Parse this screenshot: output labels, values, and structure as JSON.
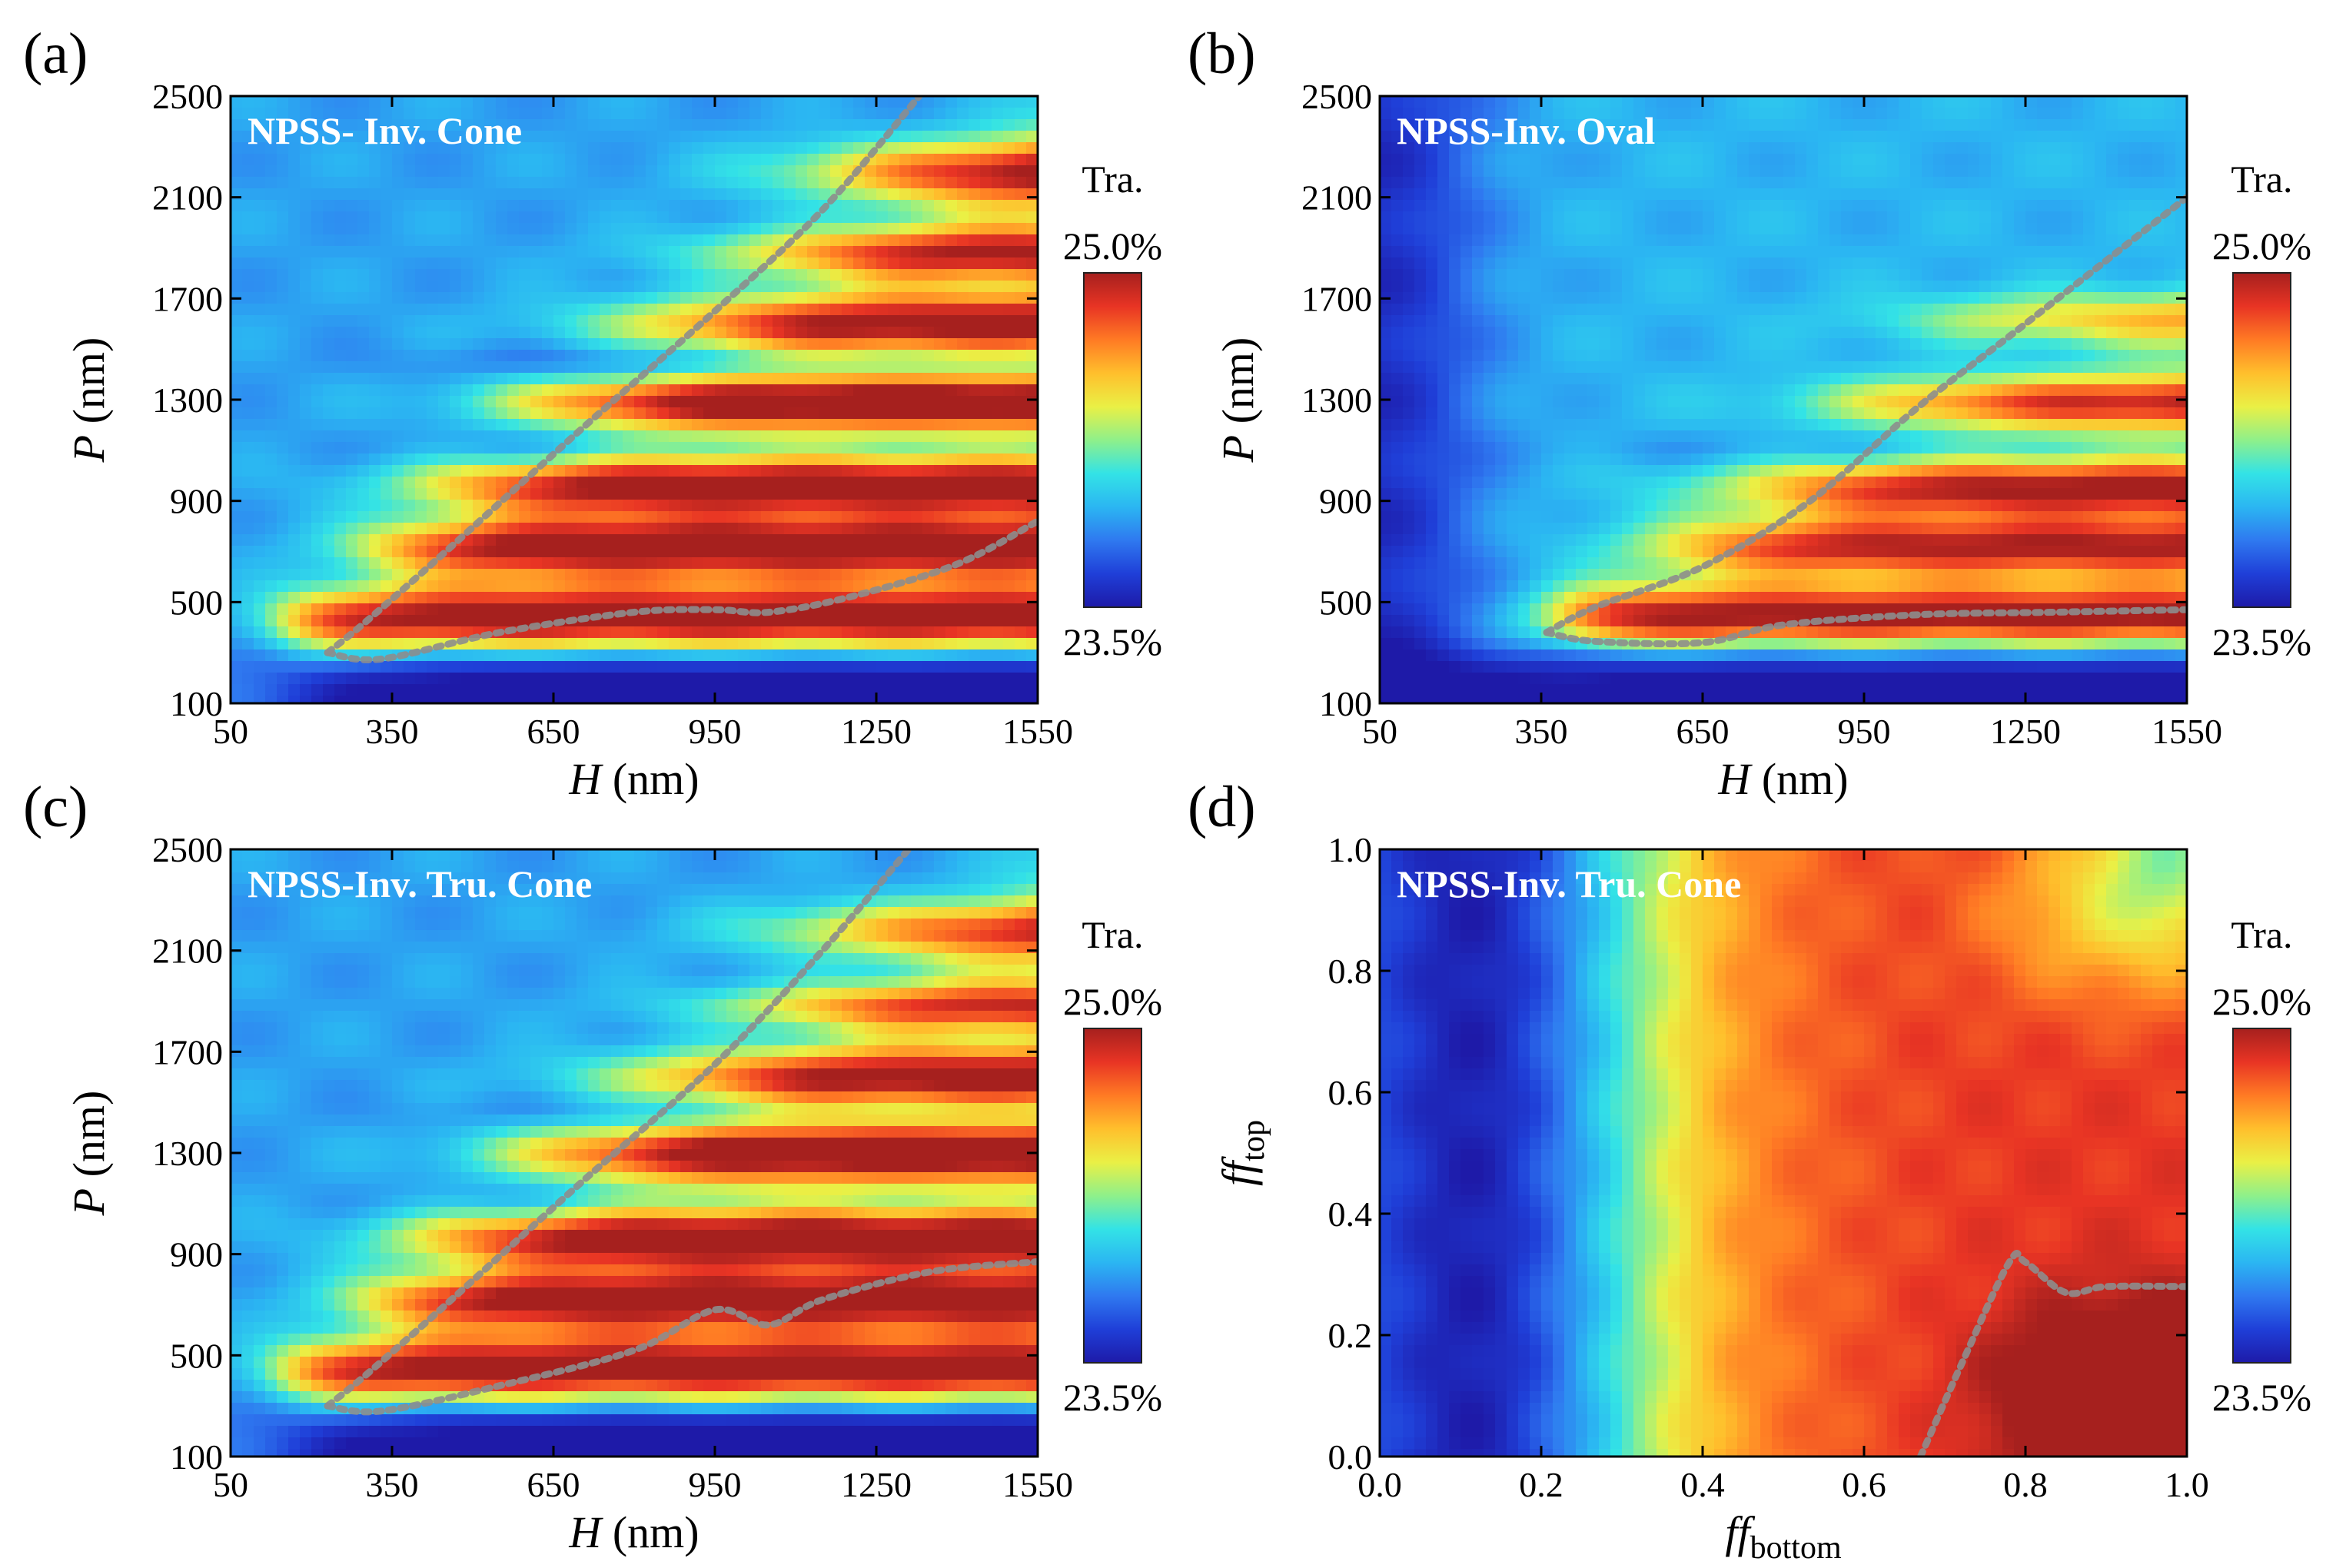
{
  "colors": {
    "colormap": [
      "#1e1aa8",
      "#1f3fd8",
      "#2f79f0",
      "#2bb6f2",
      "#33e3e6",
      "#8ff08a",
      "#eaf045",
      "#ffbf2c",
      "#ff7a24",
      "#e83424",
      "#a6201e"
    ],
    "boundary_line": "#8d8d8d",
    "inset_text": "#ffffff"
  },
  "chart_data": [
    {
      "id": "a",
      "type": "heatmap",
      "panel_label": "(a)",
      "inset_title": "NPSS- Inv. Cone",
      "xlabel": "H",
      "xunit": " (nm)",
      "ylabel": "P",
      "yunit": " (nm)",
      "xlim": [
        50,
        1550
      ],
      "ylim": [
        100,
        2500
      ],
      "xticks": [
        "50",
        "350",
        "650",
        "950",
        "1250",
        "1550"
      ],
      "yticks": [
        "100",
        "500",
        "900",
        "1300",
        "1700",
        "2100",
        "2500"
      ],
      "colorbar": {
        "title": "Tra.",
        "max_label": "25.0%",
        "min_label": "23.5%",
        "range": [
          23.5,
          25.0
        ]
      },
      "field": {
        "base": 23.9,
        "rows": [
          {
            "p": 430,
            "w": 130,
            "amp": 1.0,
            "h_start": 150,
            "h_ramp": 120
          },
          {
            "p": 720,
            "w": 110,
            "amp": 0.9,
            "h_start": 310,
            "h_ramp": 180
          },
          {
            "p": 960,
            "w": 110,
            "amp": 0.9,
            "h_start": 420,
            "h_ramp": 240
          },
          {
            "p": 1290,
            "w": 100,
            "amp": 0.95,
            "h_start": 600,
            "h_ramp": 260
          },
          {
            "p": 1600,
            "w": 110,
            "amp": 0.85,
            "h_start": 800,
            "h_ramp": 300
          },
          {
            "p": 1880,
            "w": 100,
            "amp": 0.8,
            "h_start": 1000,
            "h_ramp": 300
          },
          {
            "p": 2200,
            "w": 120,
            "amp": 0.9,
            "h_start": 1150,
            "h_ramp": 300
          }
        ],
        "cool_valleys": [
          {
            "p": 1100,
            "w": 70,
            "amp": 0.15
          },
          {
            "p": 1450,
            "w": 70,
            "amp": 0.15
          }
        ],
        "bottom_dip": {
          "p_max": 300,
          "amp": 0.6
        },
        "wedge": {
          "h0": 230,
          "p0": 300,
          "slope": 1.6,
          "amp": 0.35
        }
      },
      "boundary_curves": [
        {
          "name": "upper-boundary",
          "points": [
            [
              230,
              300
            ],
            [
              300,
              420
            ],
            [
              450,
              700
            ],
            [
              700,
              1180
            ],
            [
              950,
              1650
            ],
            [
              1150,
              2050
            ],
            [
              1330,
              2500
            ]
          ]
        },
        {
          "name": "lower-boundary",
          "points": [
            [
              230,
              300
            ],
            [
              330,
              275
            ],
            [
              550,
              380
            ],
            [
              800,
              460
            ],
            [
              950,
              470
            ],
            [
              1050,
              460
            ],
            [
              1200,
              520
            ],
            [
              1400,
              650
            ],
            [
              1550,
              820
            ]
          ]
        }
      ]
    },
    {
      "id": "b",
      "type": "heatmap",
      "panel_label": "(b)",
      "inset_title": "NPSS-Inv. Oval",
      "xlabel": "H",
      "xunit": " (nm)",
      "ylabel": "P",
      "yunit": " (nm)",
      "xlim": [
        50,
        1550
      ],
      "ylim": [
        100,
        2500
      ],
      "xticks": [
        "50",
        "350",
        "650",
        "950",
        "1250",
        "1550"
      ],
      "yticks": [
        "100",
        "500",
        "900",
        "1300",
        "1700",
        "2100",
        "2500"
      ],
      "colorbar": {
        "title": "Tra.",
        "max_label": "25.0%",
        "min_label": "23.5%",
        "range": [
          23.5,
          25.0
        ]
      },
      "field": {
        "base": 23.95,
        "rows": [
          {
            "p": 440,
            "w": 120,
            "amp": 0.95,
            "h_start": 380,
            "h_ramp": 130
          },
          {
            "p": 720,
            "w": 110,
            "amp": 0.8,
            "h_start": 600,
            "h_ramp": 250
          },
          {
            "p": 950,
            "w": 110,
            "amp": 0.85,
            "h_start": 750,
            "h_ramp": 300
          },
          {
            "p": 1290,
            "w": 100,
            "amp": 0.8,
            "h_start": 950,
            "h_ramp": 300
          },
          {
            "p": 1620,
            "w": 100,
            "amp": 0.55,
            "h_start": 1100,
            "h_ramp": 300
          }
        ],
        "cool_valleys": [
          {
            "p": 1100,
            "w": 70,
            "amp": 0.1
          }
        ],
        "bottom_dip": {
          "p_max": 300,
          "amp": 0.6
        },
        "wedge": {
          "h0": 360,
          "p0": 380,
          "slope": 1.0,
          "amp": 0.25
        },
        "left_dip": {
          "h_max": 200,
          "amp": 0.4
        }
      },
      "boundary_curves": [
        {
          "name": "upper-boundary",
          "points": [
            [
              360,
              380
            ],
            [
              450,
              480
            ],
            [
              650,
              640
            ],
            [
              850,
              900
            ],
            [
              1050,
              1270
            ],
            [
              1250,
              1600
            ],
            [
              1550,
              2100
            ]
          ]
        },
        {
          "name": "lower-boundary",
          "points": [
            [
              360,
              380
            ],
            [
              450,
              345
            ],
            [
              650,
              340
            ],
            [
              800,
              410
            ],
            [
              1050,
              450
            ],
            [
              1300,
              460
            ],
            [
              1550,
              470
            ]
          ]
        }
      ]
    },
    {
      "id": "c",
      "type": "heatmap",
      "panel_label": "(c)",
      "inset_title": "NPSS-Inv. Tru. Cone",
      "xlabel": "H",
      "xunit": " (nm)",
      "ylabel": "P",
      "yunit": " (nm)",
      "xlim": [
        50,
        1550
      ],
      "ylim": [
        100,
        2500
      ],
      "xticks": [
        "50",
        "350",
        "650",
        "950",
        "1250",
        "1550"
      ],
      "yticks": [
        "100",
        "500",
        "900",
        "1300",
        "1700",
        "2100",
        "2500"
      ],
      "colorbar": {
        "title": "Tra.",
        "max_label": "25.0%",
        "min_label": "23.5%",
        "range": [
          23.5,
          25.0
        ]
      },
      "field": {
        "base": 23.9,
        "rows": [
          {
            "p": 440,
            "w": 130,
            "amp": 1.0,
            "h_start": 150,
            "h_ramp": 120
          },
          {
            "p": 720,
            "w": 110,
            "amp": 0.9,
            "h_start": 300,
            "h_ramp": 180
          },
          {
            "p": 960,
            "w": 110,
            "amp": 0.95,
            "h_start": 400,
            "h_ramp": 240
          },
          {
            "p": 1300,
            "w": 110,
            "amp": 0.95,
            "h_start": 600,
            "h_ramp": 260
          },
          {
            "p": 1600,
            "w": 110,
            "amp": 0.85,
            "h_start": 800,
            "h_ramp": 300
          },
          {
            "p": 1880,
            "w": 90,
            "amp": 0.7,
            "h_start": 1000,
            "h_ramp": 300
          },
          {
            "p": 2180,
            "w": 110,
            "amp": 0.75,
            "h_start": 1100,
            "h_ramp": 300
          }
        ],
        "cool_valleys": [
          {
            "p": 1110,
            "w": 70,
            "amp": 0.1
          },
          {
            "p": 1460,
            "w": 70,
            "amp": 0.1
          }
        ],
        "bottom_dip": {
          "p_max": 300,
          "amp": 0.6
        },
        "wedge": {
          "h0": 230,
          "p0": 300,
          "slope": 1.6,
          "amp": 0.35
        }
      },
      "boundary_curves": [
        {
          "name": "upper-boundary",
          "points": [
            [
              230,
              300
            ],
            [
              300,
              420
            ],
            [
              450,
              700
            ],
            [
              700,
              1180
            ],
            [
              950,
              1650
            ],
            [
              1150,
              2100
            ],
            [
              1310,
              2500
            ]
          ]
        },
        {
          "name": "lower-boundary",
          "points": [
            [
              230,
              300
            ],
            [
              330,
              280
            ],
            [
              550,
              380
            ],
            [
              800,
              520
            ],
            [
              950,
              680
            ],
            [
              1050,
              620
            ],
            [
              1150,
              720
            ],
            [
              1350,
              830
            ],
            [
              1550,
              870
            ]
          ]
        }
      ]
    },
    {
      "id": "d",
      "type": "heatmap",
      "panel_label": "(d)",
      "inset_title": "NPSS-Inv. Tru. Cone",
      "xlabel": "ff",
      "xsub": "bottom",
      "ylabel": "ff",
      "ysub": "top",
      "xlim": [
        0.0,
        1.0
      ],
      "ylim": [
        0.0,
        1.0
      ],
      "xticks": [
        "0.0",
        "0.2",
        "0.4",
        "0.6",
        "0.8",
        "1.0"
      ],
      "yticks": [
        "0.0",
        "0.2",
        "0.4",
        "0.6",
        "0.8",
        "1.0"
      ],
      "colorbar": {
        "title": "Tra.",
        "max_label": "25.0%",
        "min_label": "23.5%",
        "range": [
          23.5,
          25.0
        ]
      },
      "field": {
        "mode": "ff"
      },
      "boundary_curves": [
        {
          "name": "high-transmission-boundary",
          "points": [
            [
              0.67,
              0.0
            ],
            [
              0.72,
              0.15
            ],
            [
              0.78,
              0.32
            ],
            [
              0.8,
              0.32
            ],
            [
              0.85,
              0.27
            ],
            [
              0.9,
              0.28
            ],
            [
              1.0,
              0.28
            ]
          ]
        }
      ]
    }
  ]
}
